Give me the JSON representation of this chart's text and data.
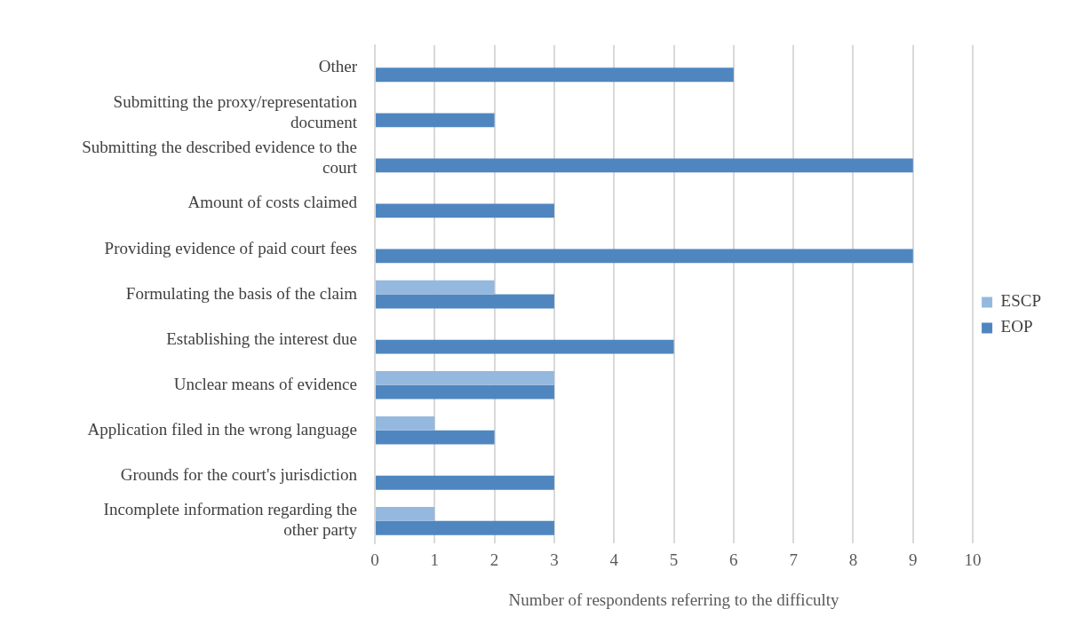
{
  "chart_data": {
    "type": "bar",
    "orientation": "horizontal",
    "xlabel": "Number of respondents referring to the difficulty",
    "categories": [
      "Other",
      "Submitting the proxy/representation document",
      "Submitting the described evidence to the court",
      "Amount of costs claimed",
      "Providing evidence of paid court fees",
      "Formulating the basis of the claim",
      "Establishing the interest due",
      "Unclear means of evidence",
      "Application filed in the wrong language",
      "Grounds for the court's jurisdiction",
      "Incomplete information regarding the other party"
    ],
    "series": [
      {
        "name": "ESCP",
        "color": "#95b8df",
        "values": [
          null,
          null,
          null,
          null,
          null,
          2,
          null,
          3,
          1,
          null,
          1
        ]
      },
      {
        "name": "EOP",
        "color": "#4f86c0",
        "values": [
          6,
          2,
          9,
          3,
          9,
          3,
          5,
          3,
          2,
          3,
          3
        ]
      }
    ],
    "xlim": [
      0,
      10
    ],
    "xticks": [
      0,
      1,
      2,
      3,
      4,
      5,
      6,
      7,
      8,
      9,
      10
    ],
    "grid": "x",
    "legend": "right"
  }
}
